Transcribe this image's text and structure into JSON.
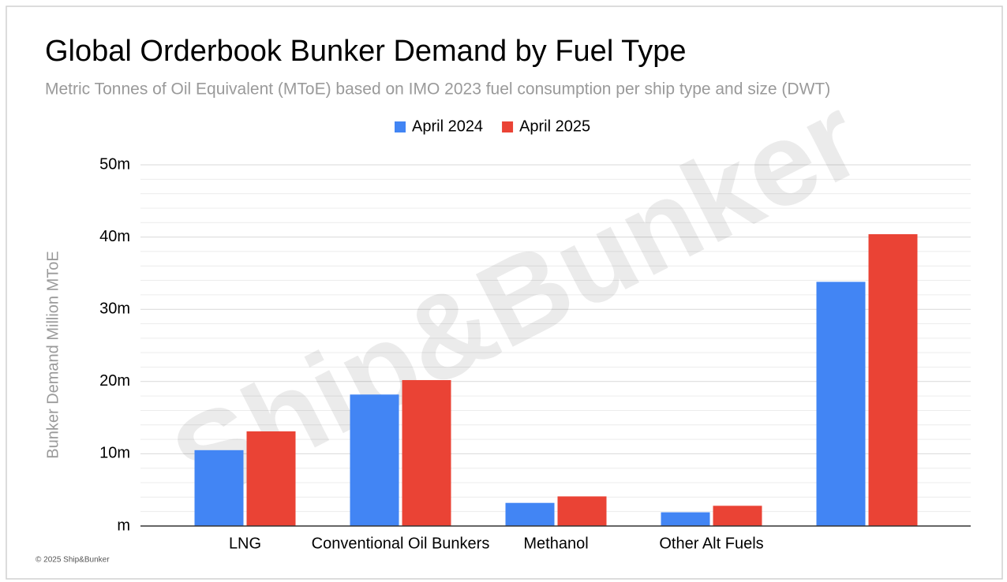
{
  "chart_data": {
    "type": "bar",
    "title": "Global Orderbook Bunker Demand by Fuel Type",
    "subtitle": "Metric Tonnes of Oil Equivalent (MToE) based on IMO 2023 fuel consumption per ship type and size (DWT)",
    "y_label": "Bunker Demand Million MToE",
    "watermark": "Ship&Bunker",
    "footer": "© 2025 Ship&Bunker",
    "categories": [
      "LNG",
      "Conventional Oil Bunkers",
      "Methanol",
      "Other Alt Fuels",
      null
    ],
    "series": [
      {
        "name": "April 2024",
        "color": "#4285f4",
        "values": [
          10.5,
          18.2,
          3.2,
          1.9,
          33.8
        ]
      },
      {
        "name": "April 2025",
        "color": "#ea4335",
        "values": [
          13.1,
          20.2,
          4.1,
          2.8,
          40.4
        ]
      }
    ],
    "ylim": [
      0,
      50
    ],
    "yticks": [
      {
        "value": 0,
        "label": "m"
      },
      {
        "value": 10,
        "label": "10m"
      },
      {
        "value": 20,
        "label": "20m"
      },
      {
        "value": 30,
        "label": "30m"
      },
      {
        "value": 40,
        "label": "40m"
      },
      {
        "value": 50,
        "label": "50m"
      }
    ],
    "yticks_minor": [
      2,
      4,
      6,
      8,
      12,
      14,
      16,
      18,
      22,
      24,
      26,
      28,
      32,
      34,
      36,
      38,
      42,
      44,
      46,
      48
    ],
    "grid": true,
    "legend": "top"
  }
}
